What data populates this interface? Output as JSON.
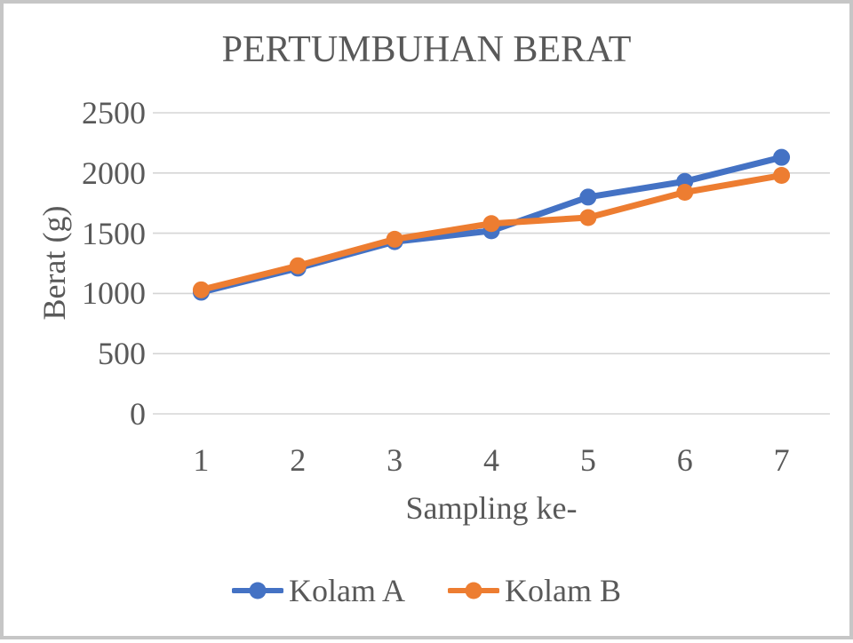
{
  "window": {
    "background_color": "#ffffff",
    "border_color": "#c6c6c6"
  },
  "chart_data": {
    "type": "line",
    "title": "PERTUMBUHAN BERAT",
    "xlabel": "Sampling ke-",
    "ylabel": "Berat (g)",
    "x": [
      1,
      2,
      3,
      4,
      5,
      6,
      7
    ],
    "x_labels": [
      "1",
      "2",
      "3",
      "4",
      "5",
      "6",
      "7"
    ],
    "series": [
      {
        "name": "Kolam A",
        "color": "#4472C4",
        "values": [
          1010,
          1210,
          1430,
          1520,
          1800,
          1930,
          2130
        ]
      },
      {
        "name": "Kolam B",
        "color": "#ED7D31",
        "values": [
          1030,
          1230,
          1450,
          1580,
          1630,
          1840,
          1980
        ]
      }
    ],
    "ylim": [
      0,
      2500
    ],
    "yticks": [
      0,
      500,
      1000,
      1500,
      2000,
      2500
    ],
    "ytick_labels": [
      "0",
      "500",
      "1000",
      "1500",
      "2000",
      "2500"
    ],
    "grid": "horizontal",
    "gridline_color": "#d5d5d5",
    "text_color": "#595959",
    "legend_position": "bottom",
    "marker": "circle"
  }
}
